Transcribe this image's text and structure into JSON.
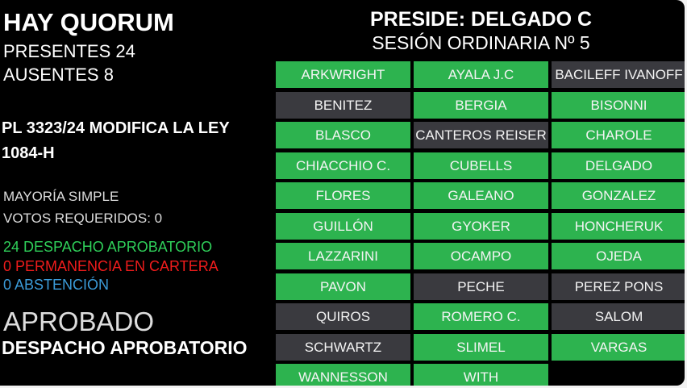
{
  "header": {
    "title": "HAY QUORUM",
    "present": "PRESENTES 24",
    "absent": "AUSENTES 8",
    "president": "PRESIDE: DELGADO C",
    "session": "SESIÓN ORDINARIA Nº 5"
  },
  "bill": {
    "title": "PL 3323/24 MODIFICA LA LEY 1084-H",
    "majority": "MAYORÍA SIMPLE",
    "required": "VOTOS REQUERIDOS: 0"
  },
  "votes": [
    {
      "text": "24 DESPACHO APROBATORIO",
      "color": "#2fd05a"
    },
    {
      "text": "0 PERMANENCIA EN CARTERA",
      "color": "#f01c1c"
    },
    {
      "text": "0 ABSTENCIÓN",
      "color": "#3b9bd8"
    }
  ],
  "result": {
    "status": "APROBADO",
    "decision": "DESPACHO APROBATORIO"
  },
  "members": [
    {
      "name": "ARKWRIGHT",
      "color": "#2db34f"
    },
    {
      "name": "AYALA J.C",
      "color": "#2db34f"
    },
    {
      "name": "BACILEFF IVANOFF",
      "color": "#3a3a3f"
    },
    {
      "name": "BENITEZ",
      "color": "#3a3a3f"
    },
    {
      "name": "BERGIA",
      "color": "#2db34f"
    },
    {
      "name": "BISONNI",
      "color": "#2db34f"
    },
    {
      "name": "BLASCO",
      "color": "#2db34f"
    },
    {
      "name": "CANTEROS REISER",
      "color": "#3a3a3f"
    },
    {
      "name": "CHAROLE",
      "color": "#2db34f"
    },
    {
      "name": "CHIACCHIO C.",
      "color": "#2db34f"
    },
    {
      "name": "CUBELLS",
      "color": "#2db34f"
    },
    {
      "name": "DELGADO",
      "color": "#2db34f"
    },
    {
      "name": "FLORES",
      "color": "#2db34f"
    },
    {
      "name": "GALEANO",
      "color": "#2db34f"
    },
    {
      "name": "GONZALEZ",
      "color": "#2db34f"
    },
    {
      "name": "GUILLÓN",
      "color": "#2db34f"
    },
    {
      "name": "GYOKER",
      "color": "#2db34f"
    },
    {
      "name": "HONCHERUK",
      "color": "#2db34f"
    },
    {
      "name": "LAZZARINI",
      "color": "#2db34f"
    },
    {
      "name": "OCAMPO",
      "color": "#2db34f"
    },
    {
      "name": "OJEDA",
      "color": "#2db34f"
    },
    {
      "name": "PAVON",
      "color": "#2db34f"
    },
    {
      "name": "PECHE",
      "color": "#3a3a3f"
    },
    {
      "name": "PEREZ PONS",
      "color": "#3a3a3f"
    },
    {
      "name": "QUIROS",
      "color": "#3a3a3f"
    },
    {
      "name": "ROMERO C.",
      "color": "#2db34f"
    },
    {
      "name": "SALOM",
      "color": "#3a3a3f"
    },
    {
      "name": "SCHWARTZ",
      "color": "#3a3a3f"
    },
    {
      "name": "SLIMEL",
      "color": "#2db34f"
    },
    {
      "name": "VARGAS",
      "color": "#2db34f"
    },
    {
      "name": "WANNESSON",
      "color": "#2db34f"
    },
    {
      "name": "WITH",
      "color": "#2db34f"
    }
  ]
}
